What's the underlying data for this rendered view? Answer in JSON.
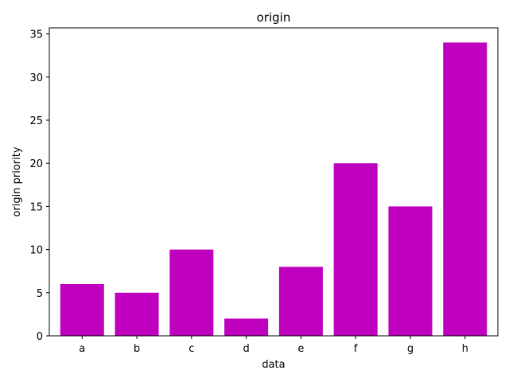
{
  "chart_data": {
    "type": "bar",
    "title": "origin",
    "xlabel": "data",
    "ylabel": "origin priority",
    "categories": [
      "a",
      "b",
      "c",
      "d",
      "e",
      "f",
      "g",
      "h"
    ],
    "values": [
      6,
      5,
      10,
      2,
      8,
      20,
      15,
      34
    ],
    "ylim": [
      0,
      35.7
    ],
    "yticks": [
      0,
      5,
      10,
      15,
      20,
      25,
      30,
      35
    ],
    "bar_color": "#bf00bf",
    "grid": false,
    "legend": "none"
  }
}
